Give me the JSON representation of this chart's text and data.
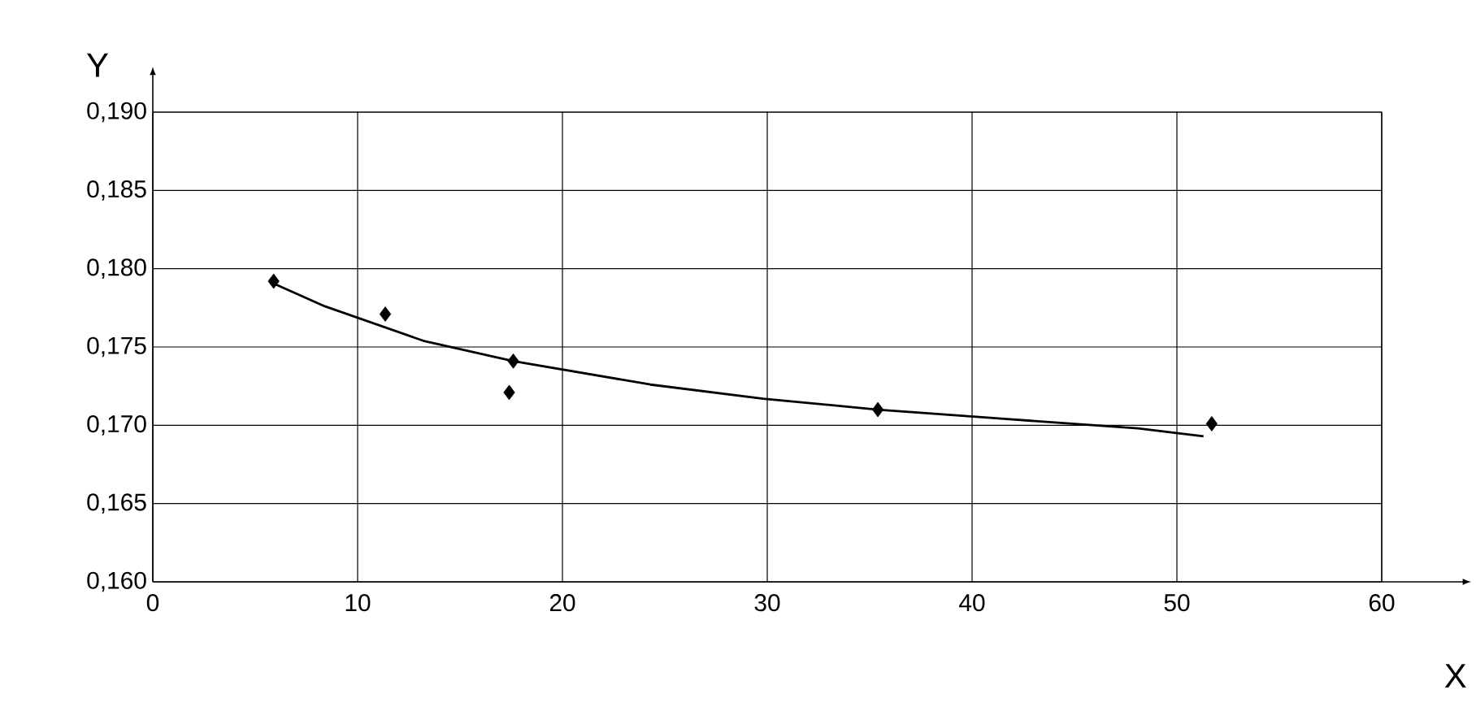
{
  "chart_data": {
    "type": "scatter",
    "xlabel": "X",
    "ylabel": "Y",
    "xlim": [
      0,
      60
    ],
    "ylim": [
      0.16,
      0.19
    ],
    "xticks": [
      0,
      10,
      20,
      30,
      40,
      50,
      60
    ],
    "yticks": [
      {
        "value": 0.16,
        "label": "0,160"
      },
      {
        "value": 0.165,
        "label": "0,165"
      },
      {
        "value": 0.17,
        "label": "0,170"
      },
      {
        "value": 0.175,
        "label": "0,175"
      },
      {
        "value": 0.18,
        "label": "0,180"
      },
      {
        "value": 0.185,
        "label": "0,185"
      },
      {
        "value": 0.19,
        "label": "0,190"
      }
    ],
    "grid": true,
    "series": [
      {
        "type": "scatter",
        "color": "#000000",
        "marker": "diamond",
        "x": [
          5.9,
          11.35,
          17.6,
          17.4,
          35.4,
          51.7
        ],
        "values": [
          0.1792,
          0.1771,
          0.1741,
          0.1721,
          0.171,
          0.1701
        ]
      },
      {
        "type": "line",
        "color": "#000000",
        "marker": "none",
        "line_style": "solid",
        "x": [
          6,
          8.4,
          13.2,
          17.6,
          24.3,
          29.8,
          35.4,
          41.7,
          48.1,
          51.3
        ],
        "values": [
          0.179,
          0.1776,
          0.1754,
          0.1741,
          0.1726,
          0.1717,
          0.171,
          0.1704,
          0.1698,
          0.1693
        ]
      }
    ]
  }
}
